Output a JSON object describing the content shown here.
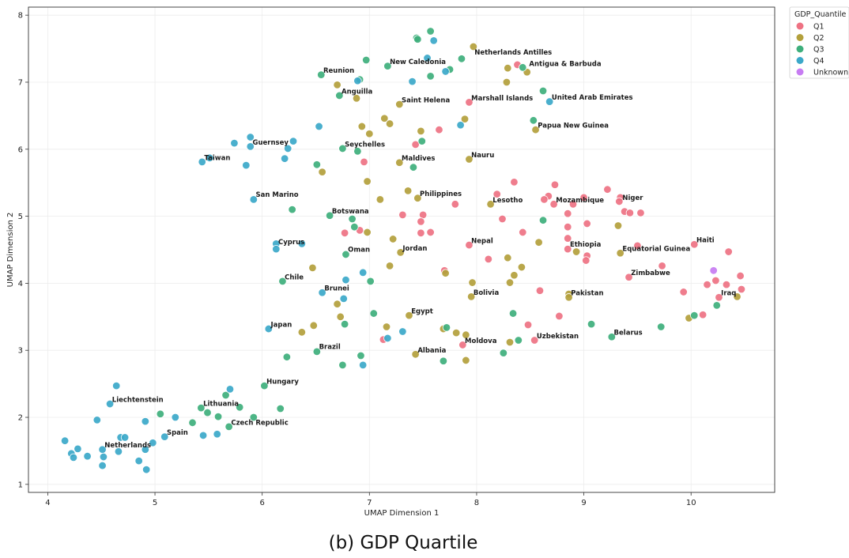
{
  "chart_data": {
    "type": "scatter",
    "xlabel": "UMAP Dimension 1",
    "ylabel": "UMAP Dimension 2",
    "xlim": [
      3.82,
      10.78
    ],
    "ylim": [
      0.88,
      8.12
    ],
    "xticks": [
      4,
      5,
      6,
      7,
      8,
      9,
      10
    ],
    "yticks": [
      1,
      2,
      3,
      4,
      5,
      6,
      7,
      8
    ],
    "grid": true,
    "legend": {
      "title": "GDP_Quantile",
      "placement": "top-right outside",
      "entries": [
        "Q1",
        "Q2",
        "Q3",
        "Q4",
        "Unknown"
      ]
    },
    "colors": {
      "Q1": "#ee7283",
      "Q2": "#b3a03c",
      "Q3": "#3eaf7c",
      "Q4": "#3ba8c9",
      "Unknown": "#c77cf2"
    },
    "series": [
      {
        "name": "Q1",
        "points": [
          [
            8.38,
            7.26
          ],
          [
            7.93,
            6.7
          ],
          [
            7.65,
            6.29
          ],
          [
            7.43,
            6.07
          ],
          [
            6.95,
            5.81
          ],
          [
            8.35,
            5.51
          ],
          [
            8.19,
            5.33
          ],
          [
            8.73,
            5.47
          ],
          [
            8.67,
            5.3
          ],
          [
            8.72,
            5.18
          ],
          [
            8.63,
            5.25
          ],
          [
            9.0,
            5.28
          ],
          [
            8.9,
            5.18
          ],
          [
            9.22,
            5.4
          ],
          [
            9.34,
            5.28
          ],
          [
            9.33,
            5.22
          ],
          [
            9.38,
            5.07
          ],
          [
            9.43,
            5.05
          ],
          [
            9.53,
            5.05
          ],
          [
            7.8,
            5.18
          ],
          [
            7.31,
            5.02
          ],
          [
            7.5,
            5.02
          ],
          [
            7.48,
            4.92
          ],
          [
            8.24,
            4.96
          ],
          [
            8.85,
            5.04
          ],
          [
            6.77,
            4.75
          ],
          [
            6.91,
            4.79
          ],
          [
            7.48,
            4.75
          ],
          [
            7.57,
            4.76
          ],
          [
            8.43,
            4.76
          ],
          [
            8.85,
            4.84
          ],
          [
            9.03,
            4.89
          ],
          [
            8.85,
            4.67
          ],
          [
            7.93,
            4.57
          ],
          [
            8.11,
            4.36
          ],
          [
            8.85,
            4.51
          ],
          [
            9.03,
            4.41
          ],
          [
            9.02,
            4.34
          ],
          [
            9.5,
            4.56
          ],
          [
            10.03,
            4.58
          ],
          [
            10.35,
            4.47
          ],
          [
            9.73,
            4.26
          ],
          [
            9.42,
            4.09
          ],
          [
            7.7,
            4.19
          ],
          [
            10.23,
            4.04
          ],
          [
            10.46,
            4.11
          ],
          [
            10.15,
            3.98
          ],
          [
            10.33,
            3.98
          ],
          [
            10.47,
            3.91
          ],
          [
            9.93,
            3.87
          ],
          [
            10.26,
            3.79
          ],
          [
            10.11,
            3.53
          ],
          [
            8.59,
            3.89
          ],
          [
            8.77,
            3.51
          ],
          [
            8.48,
            3.38
          ],
          [
            8.54,
            3.15
          ],
          [
            7.87,
            3.08
          ],
          [
            7.13,
            3.16
          ]
        ]
      },
      {
        "name": "Q2",
        "points": [
          [
            7.97,
            7.53
          ],
          [
            8.29,
            7.21
          ],
          [
            8.47,
            7.15
          ],
          [
            6.7,
            6.96
          ],
          [
            8.28,
            7.0
          ],
          [
            6.88,
            6.76
          ],
          [
            7.28,
            6.67
          ],
          [
            7.14,
            6.46
          ],
          [
            7.19,
            6.38
          ],
          [
            6.93,
            6.34
          ],
          [
            7.48,
            6.27
          ],
          [
            7.0,
            6.23
          ],
          [
            7.89,
            6.45
          ],
          [
            8.55,
            6.29
          ],
          [
            7.28,
            5.8
          ],
          [
            6.56,
            5.66
          ],
          [
            7.93,
            5.85
          ],
          [
            6.98,
            5.52
          ],
          [
            7.36,
            5.38
          ],
          [
            7.45,
            5.27
          ],
          [
            7.1,
            5.25
          ],
          [
            8.13,
            5.18
          ],
          [
            9.32,
            4.86
          ],
          [
            6.98,
            4.76
          ],
          [
            7.22,
            4.66
          ],
          [
            7.29,
            4.46
          ],
          [
            8.58,
            4.61
          ],
          [
            8.93,
            4.47
          ],
          [
            9.34,
            4.45
          ],
          [
            6.47,
            4.23
          ],
          [
            7.19,
            4.26
          ],
          [
            8.29,
            4.38
          ],
          [
            8.42,
            4.24
          ],
          [
            7.71,
            4.15
          ],
          [
            8.35,
            4.12
          ],
          [
            7.96,
            4.01
          ],
          [
            8.31,
            4.01
          ],
          [
            6.7,
            3.69
          ],
          [
            7.95,
            3.8
          ],
          [
            8.86,
            3.84
          ],
          [
            8.86,
            3.79
          ],
          [
            10.43,
            3.8
          ],
          [
            9.98,
            3.48
          ],
          [
            6.73,
            3.5
          ],
          [
            7.37,
            3.52
          ],
          [
            6.48,
            3.37
          ],
          [
            7.16,
            3.35
          ],
          [
            7.69,
            3.32
          ],
          [
            6.37,
            3.27
          ],
          [
            7.81,
            3.26
          ],
          [
            7.9,
            3.23
          ],
          [
            8.31,
            3.12
          ],
          [
            7.43,
            2.94
          ],
          [
            7.9,
            2.85
          ]
        ]
      },
      {
        "name": "Q3",
        "points": [
          [
            7.57,
            7.76
          ],
          [
            7.44,
            7.66
          ],
          [
            7.45,
            7.64
          ],
          [
            6.97,
            7.33
          ],
          [
            7.17,
            7.24
          ],
          [
            7.86,
            7.35
          ],
          [
            7.75,
            7.19
          ],
          [
            6.55,
            7.11
          ],
          [
            6.91,
            7.04
          ],
          [
            7.57,
            7.09
          ],
          [
            8.43,
            7.22
          ],
          [
            8.62,
            6.87
          ],
          [
            6.72,
            6.8
          ],
          [
            8.53,
            6.43
          ],
          [
            7.49,
            6.12
          ],
          [
            6.75,
            6.01
          ],
          [
            6.89,
            5.97
          ],
          [
            6.51,
            5.77
          ],
          [
            7.41,
            5.73
          ],
          [
            6.28,
            5.1
          ],
          [
            6.63,
            5.01
          ],
          [
            6.84,
            4.96
          ],
          [
            8.62,
            4.94
          ],
          [
            6.86,
            4.84
          ],
          [
            6.78,
            4.43
          ],
          [
            6.19,
            4.03
          ],
          [
            7.01,
            4.03
          ],
          [
            10.24,
            3.67
          ],
          [
            8.34,
            3.55
          ],
          [
            7.04,
            3.55
          ],
          [
            6.77,
            3.39
          ],
          [
            7.72,
            3.34
          ],
          [
            9.07,
            3.39
          ],
          [
            9.72,
            3.35
          ],
          [
            8.39,
            3.15
          ],
          [
            8.25,
            2.96
          ],
          [
            9.26,
            3.2
          ],
          [
            6.51,
            2.98
          ],
          [
            6.23,
            2.9
          ],
          [
            6.92,
            2.92
          ],
          [
            6.75,
            2.78
          ],
          [
            7.69,
            2.84
          ],
          [
            6.02,
            2.47
          ],
          [
            5.66,
            2.33
          ],
          [
            5.43,
            2.14
          ],
          [
            5.49,
            2.07
          ],
          [
            5.79,
            2.15
          ],
          [
            6.17,
            2.13
          ],
          [
            5.92,
            2.0
          ],
          [
            5.05,
            2.05
          ],
          [
            5.35,
            1.92
          ],
          [
            5.59,
            2.01
          ],
          [
            5.69,
            1.86
          ],
          [
            10.03,
            3.52
          ]
        ]
      },
      {
        "name": "Q4",
        "points": [
          [
            7.6,
            7.62
          ],
          [
            7.54,
            7.36
          ],
          [
            7.71,
            7.16
          ],
          [
            7.4,
            7.01
          ],
          [
            6.89,
            7.02
          ],
          [
            8.68,
            6.71
          ],
          [
            7.85,
            6.36
          ],
          [
            6.53,
            6.34
          ],
          [
            5.89,
            6.18
          ],
          [
            6.29,
            6.12
          ],
          [
            5.74,
            6.09
          ],
          [
            6.24,
            6.01
          ],
          [
            5.89,
            6.04
          ],
          [
            6.21,
            5.86
          ],
          [
            5.51,
            5.87
          ],
          [
            5.44,
            5.81
          ],
          [
            5.85,
            5.76
          ],
          [
            5.92,
            5.25
          ],
          [
            6.13,
            4.59
          ],
          [
            6.13,
            4.51
          ],
          [
            6.37,
            4.59
          ],
          [
            6.78,
            4.05
          ],
          [
            6.94,
            4.16
          ],
          [
            6.56,
            3.86
          ],
          [
            6.76,
            3.77
          ],
          [
            6.06,
            3.32
          ],
          [
            7.31,
            3.28
          ],
          [
            7.17,
            3.18
          ],
          [
            6.94,
            2.78
          ],
          [
            5.7,
            2.42
          ],
          [
            4.64,
            2.47
          ],
          [
            4.58,
            2.2
          ],
          [
            4.46,
            1.96
          ],
          [
            4.91,
            1.94
          ],
          [
            5.19,
            2.0
          ],
          [
            4.68,
            1.7
          ],
          [
            4.72,
            1.7
          ],
          [
            5.09,
            1.71
          ],
          [
            5.45,
            1.73
          ],
          [
            5.58,
            1.75
          ],
          [
            4.16,
            1.65
          ],
          [
            4.28,
            1.53
          ],
          [
            4.51,
            1.52
          ],
          [
            4.91,
            1.52
          ],
          [
            4.98,
            1.62
          ],
          [
            4.22,
            1.46
          ],
          [
            4.24,
            1.4
          ],
          [
            4.37,
            1.42
          ],
          [
            4.52,
            1.41
          ],
          [
            4.66,
            1.49
          ],
          [
            4.85,
            1.35
          ],
          [
            4.51,
            1.28
          ],
          [
            4.92,
            1.22
          ]
        ]
      },
      {
        "name": "Unknown",
        "points": [
          [
            10.21,
            4.19
          ]
        ]
      }
    ],
    "annotations": [
      {
        "text": "Netherlands Antilles",
        "x": 7.98,
        "y": 7.41
      },
      {
        "text": "Antigua & Barbuda",
        "x": 8.49,
        "y": 7.24
      },
      {
        "text": "New Caledonia",
        "x": 7.19,
        "y": 7.27
      },
      {
        "text": "Reunion",
        "x": 6.57,
        "y": 7.14
      },
      {
        "text": "Anguilla",
        "x": 6.74,
        "y": 6.83
      },
      {
        "text": "Saint Helena",
        "x": 7.3,
        "y": 6.7
      },
      {
        "text": "Marshall Islands",
        "x": 7.95,
        "y": 6.73
      },
      {
        "text": "United Arab Emirates",
        "x": 8.7,
        "y": 6.74
      },
      {
        "text": "Papua New Guinea",
        "x": 8.57,
        "y": 6.32
      },
      {
        "text": "Guernsey",
        "x": 5.91,
        "y": 6.07
      },
      {
        "text": "Seychelles",
        "x": 6.77,
        "y": 6.04
      },
      {
        "text": "Taiwan",
        "x": 5.46,
        "y": 5.84
      },
      {
        "text": "Maldives",
        "x": 7.3,
        "y": 5.83
      },
      {
        "text": "Nauru",
        "x": 7.95,
        "y": 5.88
      },
      {
        "text": "San Marino",
        "x": 5.94,
        "y": 5.29
      },
      {
        "text": "Philippines",
        "x": 7.47,
        "y": 5.3
      },
      {
        "text": "Lesotho",
        "x": 8.15,
        "y": 5.21
      },
      {
        "text": "Mozambique",
        "x": 8.74,
        "y": 5.21
      },
      {
        "text": "Niger",
        "x": 9.36,
        "y": 5.24
      },
      {
        "text": "Botswana",
        "x": 6.65,
        "y": 5.04
      },
      {
        "text": "Cyprus",
        "x": 6.15,
        "y": 4.58
      },
      {
        "text": "Nepal",
        "x": 7.95,
        "y": 4.6
      },
      {
        "text": "Ethiopia",
        "x": 8.87,
        "y": 4.55
      },
      {
        "text": "Oman",
        "x": 6.8,
        "y": 4.47
      },
      {
        "text": "Jordan",
        "x": 7.31,
        "y": 4.49
      },
      {
        "text": "Equatorial Guinea",
        "x": 9.36,
        "y": 4.48
      },
      {
        "text": "Haiti",
        "x": 10.05,
        "y": 4.61
      },
      {
        "text": "Zimbabwe",
        "x": 9.44,
        "y": 4.12
      },
      {
        "text": "Chile",
        "x": 6.21,
        "y": 4.06
      },
      {
        "text": "Brunei",
        "x": 6.58,
        "y": 3.89
      },
      {
        "text": "Bolivia",
        "x": 7.97,
        "y": 3.83
      },
      {
        "text": "Pakistan",
        "x": 8.88,
        "y": 3.82
      },
      {
        "text": "Iraq",
        "x": 10.28,
        "y": 3.82
      },
      {
        "text": "Egypt",
        "x": 7.39,
        "y": 3.55
      },
      {
        "text": "Japan",
        "x": 6.08,
        "y": 3.35
      },
      {
        "text": "Belarus",
        "x": 9.28,
        "y": 3.23
      },
      {
        "text": "Uzbekistan",
        "x": 8.56,
        "y": 3.18
      },
      {
        "text": "Moldova",
        "x": 7.89,
        "y": 3.11
      },
      {
        "text": "Brazil",
        "x": 6.53,
        "y": 3.02
      },
      {
        "text": "Albania",
        "x": 7.45,
        "y": 2.97
      },
      {
        "text": "Hungary",
        "x": 6.04,
        "y": 2.5
      },
      {
        "text": "Liechtenstein",
        "x": 4.6,
        "y": 2.23
      },
      {
        "text": "Lithuania",
        "x": 5.45,
        "y": 2.17
      },
      {
        "text": "Czech Republic",
        "x": 5.71,
        "y": 1.89
      },
      {
        "text": "Spain",
        "x": 5.11,
        "y": 1.74
      },
      {
        "text": "Netherlands",
        "x": 4.53,
        "y": 1.55
      }
    ]
  },
  "caption": "(b) GDP Quartile"
}
